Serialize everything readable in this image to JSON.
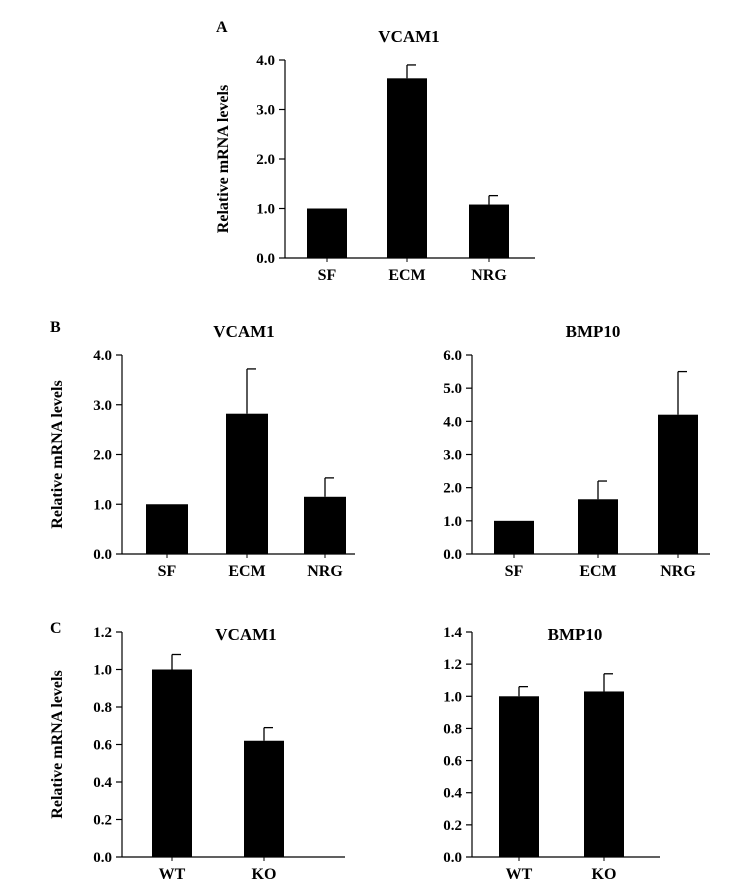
{
  "panels": [
    {
      "letter": "A"
    },
    {
      "letter": "B"
    },
    {
      "letter": "C"
    }
  ],
  "colors": {
    "bar": "#000000",
    "axis": "#000000",
    "background": "#ffffff"
  },
  "chart_data": [
    {
      "id": "A-VCAM1",
      "panel": "A",
      "type": "bar",
      "title": "VCAM1",
      "xlabel": "",
      "ylabel": "Relative mRNA levels",
      "categories": [
        "SF",
        "ECM",
        "NRG"
      ],
      "values": [
        1.0,
        3.63,
        1.08
      ],
      "errors": [
        0,
        0.27,
        0.18
      ],
      "ylim": [
        0,
        4.0
      ],
      "yticks": [
        "0.0",
        "1.0",
        "2.0",
        "3.0",
        "4.0"
      ],
      "grid": false
    },
    {
      "id": "B-VCAM1",
      "panel": "B",
      "type": "bar",
      "title": "VCAM1",
      "xlabel": "",
      "ylabel": "Relative mRNA levels",
      "categories": [
        "SF",
        "ECM",
        "NRG"
      ],
      "values": [
        1.0,
        2.82,
        1.15
      ],
      "errors": [
        0,
        0.9,
        0.38
      ],
      "ylim": [
        0,
        4.0
      ],
      "yticks": [
        "0.0",
        "1.0",
        "2.0",
        "3.0",
        "4.0"
      ],
      "grid": false
    },
    {
      "id": "B-BMP10",
      "panel": "B",
      "type": "bar",
      "title": "BMP10",
      "xlabel": "",
      "ylabel": "",
      "categories": [
        "SF",
        "ECM",
        "NRG"
      ],
      "values": [
        1.0,
        1.65,
        4.2
      ],
      "errors": [
        0,
        0.55,
        1.3
      ],
      "ylim": [
        0,
        6.0
      ],
      "yticks": [
        "0.0",
        "1.0",
        "2.0",
        "3.0",
        "4.0",
        "5.0",
        "6.0"
      ],
      "grid": false
    },
    {
      "id": "C-VCAM1",
      "panel": "C",
      "type": "bar",
      "title": "VCAM1",
      "xlabel": "",
      "ylabel": "Relative mRNA levels",
      "categories": [
        "WT",
        "KO"
      ],
      "values": [
        1.0,
        0.62
      ],
      "errors": [
        0.08,
        0.07
      ],
      "ylim": [
        0,
        1.2
      ],
      "yticks": [
        "0.0",
        "0.2",
        "0.4",
        "0.6",
        "0.8",
        "1.0",
        "1.2"
      ],
      "grid": false
    },
    {
      "id": "C-BMP10",
      "panel": "C",
      "type": "bar",
      "title": "BMP10",
      "xlabel": "",
      "ylabel": "",
      "categories": [
        "WT",
        "KO"
      ],
      "values": [
        1.0,
        1.03
      ],
      "errors": [
        0.06,
        0.11
      ],
      "ylim": [
        0,
        1.4
      ],
      "yticks": [
        "0.0",
        "0.2",
        "0.4",
        "0.6",
        "0.8",
        "1.0",
        "1.2",
        "1.4"
      ],
      "grid": false
    }
  ]
}
